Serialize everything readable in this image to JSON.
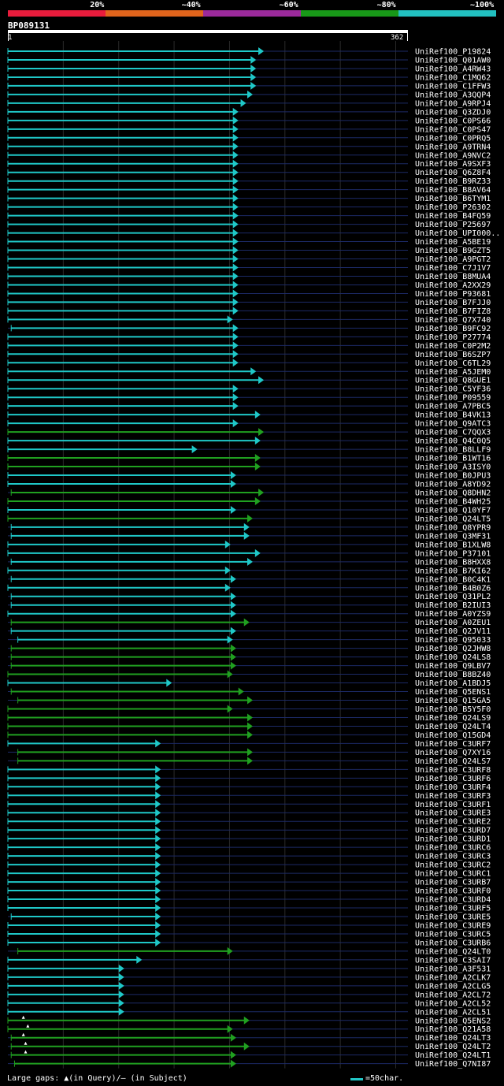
{
  "legend": {
    "segments": [
      {
        "label": "20%",
        "color": "#e81c3c"
      },
      {
        "label": "~40%",
        "color": "#e0641c"
      },
      {
        "label": "~60%",
        "color": "#9b2a9b"
      },
      {
        "label": "~80%",
        "color": "#189818"
      },
      {
        "label": "~100%",
        "color": "#22c0c0"
      }
    ]
  },
  "query": {
    "name": "BP089131",
    "start": "1",
    "end": "362"
  },
  "colors": {
    "cyan": "#1fc8c8",
    "green": "#20a020",
    "grid": "#1c2a66"
  },
  "hits": [
    {
      "id": "UniRef100_P19824",
      "qs": 1,
      "qe": 232,
      "c": "c"
    },
    {
      "id": "UniRef100_Q01AW0",
      "qs": 1,
      "qe": 225,
      "c": "c"
    },
    {
      "id": "UniRef100_A4RW43",
      "qs": 1,
      "qe": 225,
      "c": "c"
    },
    {
      "id": "UniRef100_C1MQ62",
      "qs": 1,
      "qe": 225,
      "c": "c"
    },
    {
      "id": "UniRef100_C1FFW3",
      "qs": 1,
      "qe": 225,
      "c": "c"
    },
    {
      "id": "UniRef100_A3QQP4",
      "qs": 1,
      "qe": 222,
      "c": "c"
    },
    {
      "id": "UniRef100_A9RPJ4",
      "qs": 1,
      "qe": 216,
      "c": "c"
    },
    {
      "id": "UniRef100_Q3ZDJ0",
      "qs": 1,
      "qe": 209,
      "c": "c"
    },
    {
      "id": "UniRef100_C0PS66",
      "qs": 1,
      "qe": 209,
      "c": "c"
    },
    {
      "id": "UniRef100_C0PS47",
      "qs": 1,
      "qe": 209,
      "c": "c"
    },
    {
      "id": "UniRef100_C0PRQ5",
      "qs": 1,
      "qe": 209,
      "c": "c"
    },
    {
      "id": "UniRef100_A9TRN4",
      "qs": 1,
      "qe": 209,
      "c": "c"
    },
    {
      "id": "UniRef100_A9NVC2",
      "qs": 1,
      "qe": 209,
      "c": "c"
    },
    {
      "id": "UniRef100_A9SXF3",
      "qs": 1,
      "qe": 209,
      "c": "c"
    },
    {
      "id": "UniRef100_Q6Z8F4",
      "qs": 1,
      "qe": 209,
      "c": "c"
    },
    {
      "id": "UniRef100_B9RZ33",
      "qs": 1,
      "qe": 209,
      "c": "c"
    },
    {
      "id": "UniRef100_B8AV64",
      "qs": 1,
      "qe": 209,
      "c": "c"
    },
    {
      "id": "UniRef100_B6TYM1",
      "qs": 1,
      "qe": 209,
      "c": "c"
    },
    {
      "id": "UniRef100_P26302",
      "qs": 1,
      "qe": 209,
      "c": "c"
    },
    {
      "id": "UniRef100_B4FQ59",
      "qs": 1,
      "qe": 209,
      "c": "c"
    },
    {
      "id": "UniRef100_P25697",
      "qs": 1,
      "qe": 209,
      "c": "c"
    },
    {
      "id": "UniRef100_UPI000..",
      "qs": 1,
      "qe": 209,
      "c": "c"
    },
    {
      "id": "UniRef100_A5BE19",
      "qs": 1,
      "qe": 209,
      "c": "c"
    },
    {
      "id": "UniRef100_B9GZT5",
      "qs": 1,
      "qe": 209,
      "c": "c"
    },
    {
      "id": "UniRef100_A9PGT2",
      "qs": 1,
      "qe": 209,
      "c": "c"
    },
    {
      "id": "UniRef100_C7J1V7",
      "qs": 1,
      "qe": 209,
      "c": "c"
    },
    {
      "id": "UniRef100_B8MUA4",
      "qs": 1,
      "qe": 209,
      "c": "c"
    },
    {
      "id": "UniRef100_A2XX29",
      "qs": 1,
      "qe": 209,
      "c": "c"
    },
    {
      "id": "UniRef100_P93681",
      "qs": 1,
      "qe": 209,
      "c": "c"
    },
    {
      "id": "UniRef100_B7FJJ0",
      "qs": 1,
      "qe": 209,
      "c": "c"
    },
    {
      "id": "UniRef100_B7FIZ8",
      "qs": 1,
      "qe": 209,
      "c": "c"
    },
    {
      "id": "UniRef100_Q7X740",
      "qs": 1,
      "qe": 204,
      "c": "c"
    },
    {
      "id": "UniRef100_B9FC92",
      "qs": 4,
      "qe": 209,
      "c": "c"
    },
    {
      "id": "UniRef100_P27774",
      "qs": 1,
      "qe": 209,
      "c": "c"
    },
    {
      "id": "UniRef100_C0P2M2",
      "qs": 1,
      "qe": 209,
      "c": "c"
    },
    {
      "id": "UniRef100_B6SZP7",
      "qs": 1,
      "qe": 209,
      "c": "c"
    },
    {
      "id": "UniRef100_C6TL29",
      "qs": 1,
      "qe": 209,
      "c": "c"
    },
    {
      "id": "UniRef100_A5JEM0",
      "qs": 1,
      "qe": 225,
      "c": "c"
    },
    {
      "id": "UniRef100_Q8GUE1",
      "qs": 1,
      "qe": 232,
      "c": "c"
    },
    {
      "id": "UniRef100_C5YF36",
      "qs": 1,
      "qe": 209,
      "c": "c"
    },
    {
      "id": "UniRef100_P09559",
      "qs": 1,
      "qe": 209,
      "c": "c"
    },
    {
      "id": "UniRef100_A7PBC5",
      "qs": 1,
      "qe": 209,
      "c": "c"
    },
    {
      "id": "UniRef100_B4VK13",
      "qs": 1,
      "qe": 229,
      "c": "c"
    },
    {
      "id": "UniRef100_Q9ATC3",
      "qs": 1,
      "qe": 209,
      "c": "c"
    },
    {
      "id": "UniRef100_C7QQX3",
      "qs": 1,
      "qe": 232,
      "c": "g"
    },
    {
      "id": "UniRef100_Q4C0Q5",
      "qs": 1,
      "qe": 229,
      "c": "c"
    },
    {
      "id": "UniRef100_B8LLF9",
      "qs": 1,
      "qe": 172,
      "c": "c"
    },
    {
      "id": "UniRef100_B1WT16",
      "qs": 1,
      "qe": 229,
      "c": "g"
    },
    {
      "id": "UniRef100_A3ISY0",
      "qs": 1,
      "qe": 229,
      "c": "g"
    },
    {
      "id": "UniRef100_B0JPU3",
      "qs": 1,
      "qe": 207,
      "c": "c"
    },
    {
      "id": "UniRef100_A8YD92",
      "qs": 1,
      "qe": 207,
      "c": "c"
    },
    {
      "id": "UniRef100_Q8DHN2",
      "qs": 4,
      "qe": 232,
      "c": "g"
    },
    {
      "id": "UniRef100_B4WH25",
      "qs": 1,
      "qe": 229,
      "c": "g"
    },
    {
      "id": "UniRef100_Q10YF7",
      "qs": 1,
      "qe": 207,
      "c": "c"
    },
    {
      "id": "UniRef100_Q24LT5",
      "qs": 1,
      "qe": 222,
      "c": "g"
    },
    {
      "id": "UniRef100_Q8YPR9",
      "qs": 4,
      "qe": 219,
      "c": "c"
    },
    {
      "id": "UniRef100_Q3MF31",
      "qs": 4,
      "qe": 219,
      "c": "c"
    },
    {
      "id": "UniRef100_B1XLW8",
      "qs": 1,
      "qe": 202,
      "c": "c"
    },
    {
      "id": "UniRef100_P37101",
      "qs": 1,
      "qe": 229,
      "c": "c"
    },
    {
      "id": "UniRef100_B8HXX8",
      "qs": 4,
      "qe": 222,
      "c": "c"
    },
    {
      "id": "UniRef100_B7KI62",
      "qs": 1,
      "qe": 202,
      "c": "c"
    },
    {
      "id": "UniRef100_B0C4K1",
      "qs": 4,
      "qe": 207,
      "c": "c"
    },
    {
      "id": "UniRef100_B4B0Z6",
      "qs": 1,
      "qe": 202,
      "c": "c"
    },
    {
      "id": "UniRef100_Q31PL2",
      "qs": 4,
      "qe": 207,
      "c": "c"
    },
    {
      "id": "UniRef100_B2IUI3",
      "qs": 4,
      "qe": 207,
      "c": "c"
    },
    {
      "id": "UniRef100_A0YZS9",
      "qs": 1,
      "qe": 207,
      "c": "c"
    },
    {
      "id": "UniRef100_A0ZEU1",
      "qs": 4,
      "qe": 219,
      "c": "g"
    },
    {
      "id": "UniRef100_Q2JV11",
      "qs": 4,
      "qe": 207,
      "c": "c"
    },
    {
      "id": "UniRef100_Q95033",
      "qs": 10,
      "qe": 204,
      "c": "c"
    },
    {
      "id": "UniRef100_Q2JHW8",
      "qs": 4,
      "qe": 207,
      "c": "g"
    },
    {
      "id": "UniRef100_Q24LS8",
      "qs": 4,
      "qe": 207,
      "c": "g"
    },
    {
      "id": "UniRef100_Q9LBV7",
      "qs": 4,
      "qe": 207,
      "c": "g"
    },
    {
      "id": "UniRef100_B8BZ40",
      "qs": 1,
      "qe": 204,
      "c": "g"
    },
    {
      "id": "UniRef100_A1BDJ5",
      "qs": 1,
      "qe": 149,
      "c": "c"
    },
    {
      "id": "UniRef100_Q5ENS1",
      "qs": 4,
      "qe": 214,
      "c": "g"
    },
    {
      "id": "UniRef100_Q15GA5",
      "qs": 10,
      "qe": 222,
      "c": "g"
    },
    {
      "id": "UniRef100_B5Y5F0",
      "qs": 1,
      "qe": 204,
      "c": "g"
    },
    {
      "id": "UniRef100_Q24LS9",
      "qs": 1,
      "qe": 222,
      "c": "g"
    },
    {
      "id": "UniRef100_Q24LT4",
      "qs": 1,
      "qe": 222,
      "c": "g"
    },
    {
      "id": "UniRef100_Q15GD4",
      "qs": 1,
      "qe": 222,
      "c": "g"
    },
    {
      "id": "UniRef100_C3URF7",
      "qs": 1,
      "qe": 139,
      "c": "c"
    },
    {
      "id": "UniRef100_Q7XY16",
      "qs": 10,
      "qe": 222,
      "c": "g"
    },
    {
      "id": "UniRef100_Q24LS7",
      "qs": 10,
      "qe": 222,
      "c": "g"
    },
    {
      "id": "UniRef100_C3URF8",
      "qs": 1,
      "qe": 139,
      "c": "c"
    },
    {
      "id": "UniRef100_C3URF6",
      "qs": 1,
      "qe": 139,
      "c": "c"
    },
    {
      "id": "UniRef100_C3URF4",
      "qs": 1,
      "qe": 139,
      "c": "c"
    },
    {
      "id": "UniRef100_C3URF3",
      "qs": 1,
      "qe": 139,
      "c": "c"
    },
    {
      "id": "UniRef100_C3URF1",
      "qs": 1,
      "qe": 139,
      "c": "c"
    },
    {
      "id": "UniRef100_C3URE3",
      "qs": 1,
      "qe": 139,
      "c": "c"
    },
    {
      "id": "UniRef100_C3URE2",
      "qs": 1,
      "qe": 139,
      "c": "c"
    },
    {
      "id": "UniRef100_C3URD7",
      "qs": 1,
      "qe": 139,
      "c": "c"
    },
    {
      "id": "UniRef100_C3URD1",
      "qs": 1,
      "qe": 139,
      "c": "c"
    },
    {
      "id": "UniRef100_C3URC6",
      "qs": 1,
      "qe": 139,
      "c": "c"
    },
    {
      "id": "UniRef100_C3URC3",
      "qs": 1,
      "qe": 139,
      "c": "c"
    },
    {
      "id": "UniRef100_C3URC2",
      "qs": 1,
      "qe": 139,
      "c": "c"
    },
    {
      "id": "UniRef100_C3URC1",
      "qs": 1,
      "qe": 139,
      "c": "c"
    },
    {
      "id": "UniRef100_C3URB7",
      "qs": 1,
      "qe": 139,
      "c": "c"
    },
    {
      "id": "UniRef100_C3URF0",
      "qs": 1,
      "qe": 139,
      "c": "c"
    },
    {
      "id": "UniRef100_C3URD4",
      "qs": 1,
      "qe": 139,
      "c": "c"
    },
    {
      "id": "UniRef100_C3URF5",
      "qs": 1,
      "qe": 139,
      "c": "c"
    },
    {
      "id": "UniRef100_C3URE5",
      "qs": 4,
      "qe": 139,
      "c": "c"
    },
    {
      "id": "UniRef100_C3URE9",
      "qs": 1,
      "qe": 139,
      "c": "c"
    },
    {
      "id": "UniRef100_C3URC5",
      "qs": 1,
      "qe": 139,
      "c": "c"
    },
    {
      "id": "UniRef100_C3URB6",
      "qs": 1,
      "qe": 139,
      "c": "c"
    },
    {
      "id": "UniRef100_Q24LT0",
      "qs": 10,
      "qe": 204,
      "c": "g"
    },
    {
      "id": "UniRef100_C3SAI7",
      "qs": 1,
      "qe": 122,
      "c": "c"
    },
    {
      "id": "UniRef100_A3F531",
      "qs": 1,
      "qe": 106,
      "c": "c"
    },
    {
      "id": "UniRef100_A2CLK7",
      "qs": 1,
      "qe": 106,
      "c": "c"
    },
    {
      "id": "UniRef100_A2CLG5",
      "qs": 1,
      "qe": 106,
      "c": "c"
    },
    {
      "id": "UniRef100_A2CL72",
      "qs": 1,
      "qe": 106,
      "c": "c"
    },
    {
      "id": "UniRef100_A2CL52",
      "qs": 1,
      "qe": 106,
      "c": "c"
    },
    {
      "id": "UniRef100_A2CL51",
      "qs": 1,
      "qe": 106,
      "c": "c"
    },
    {
      "id": "UniRef100_Q5ENS2",
      "qs": 1,
      "qe": 219,
      "c": "g",
      "gap": 15
    },
    {
      "id": "UniRef100_Q21A58",
      "qs": 1,
      "qe": 204,
      "c": "g",
      "gap": 19
    },
    {
      "id": "UniRef100_Q24LT3",
      "qs": 4,
      "qe": 207,
      "c": "g",
      "gap": 15
    },
    {
      "id": "UniRef100_Q24LT2",
      "qs": 4,
      "qe": 219,
      "c": "g",
      "gap": 17
    },
    {
      "id": "UniRef100_Q24LT1",
      "qs": 4,
      "qe": 207,
      "c": "g",
      "gap": 17
    },
    {
      "id": "UniRef100_Q7NI87",
      "qs": 7,
      "qe": 207,
      "c": "g"
    }
  ],
  "footer": {
    "gap_note": "Large gaps: ▲(in Query)/— (in Subject)",
    "scale_label": "=50char."
  }
}
